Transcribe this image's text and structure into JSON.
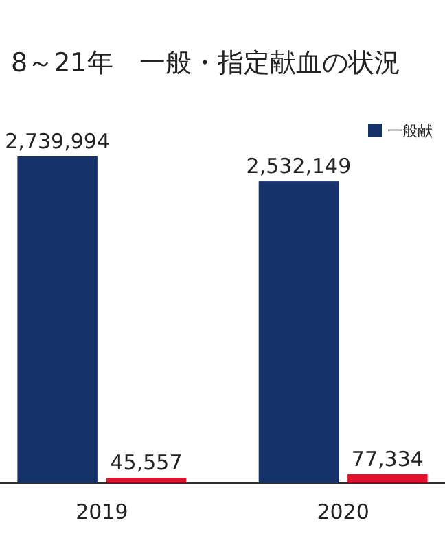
{
  "chart_data": {
    "type": "bar",
    "title": "8～21年　一般・指定献血の状況",
    "categories": [
      "2019",
      "2020"
    ],
    "series": [
      {
        "name": "一般献",
        "color": "#15326b",
        "values": [
          2739994,
          2532149
        ],
        "value_labels": [
          "2,739,994",
          "2,532,149"
        ]
      },
      {
        "color": "#e3112e",
        "values": [
          45557,
          77334
        ],
        "value_labels": [
          "45,557",
          "77,334"
        ]
      }
    ],
    "legend": "top right"
  }
}
